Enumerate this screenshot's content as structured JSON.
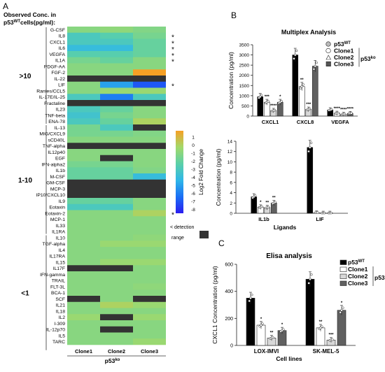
{
  "panel_labels": [
    "A",
    "B",
    "C"
  ],
  "heatmap_header": [
    "Observed Conc. in",
    "p53",
    "WT",
    "cells(pg/ml):"
  ],
  "colors": {
    "scale": [
      "#2b1cf0",
      "#1a6ff5",
      "#2fb7e8",
      "#5bd0a8",
      "#a2d96a",
      "#f6a025"
    ],
    "below_detection": "#333333",
    "wt": "#000000",
    "clone1": "#ffffff",
    "clone2": "#d8d8d8",
    "clone3": "#606060"
  },
  "heatmap": {
    "groups": [
      {
        "label": ">10",
        "start": 0,
        "end": 15
      },
      {
        "label": "1-10",
        "start": 16,
        "end": 33
      },
      {
        "label": "<1",
        "start": 34,
        "end": 52
      }
    ],
    "cols": [
      "Clone1",
      "Clone2",
      "Clone3"
    ],
    "xlabel_main": "p53",
    "xlabel_sup": "ko",
    "legend_title": "Log2 Fold Change",
    "legend_ticks": [
      "1",
      "0",
      "-1",
      "-2",
      "-3",
      "-4",
      "-5",
      "-6",
      "-7",
      "-8"
    ],
    "legend_vmin": -8.5,
    "legend_vmax": 1.8,
    "na_text_1": "< detection",
    "na_text_2": "range",
    "stars": [
      {
        "row": 1,
        "text": "*"
      },
      {
        "row": 2,
        "text": "*"
      },
      {
        "row": 3,
        "text": "*"
      },
      {
        "row": 4,
        "text": "*"
      },
      {
        "row": 5,
        "text": "*"
      },
      {
        "row": 9,
        "text": "*"
      },
      {
        "row": 30,
        "text": "*"
      }
    ]
  },
  "chart_data": [
    {
      "type": "heatmap",
      "rows": [
        "G-CSF",
        "IL8",
        "CXCL1",
        "IL6",
        "VEGFA",
        "IL1A",
        "PDGF-AA",
        "FGF-2",
        "IL-22",
        "LIF",
        "Rantes/CCL5",
        "IL-17E/IL-25",
        "Fractaline",
        "IL23",
        "TNF-beta",
        "ENA-78",
        "IL-13",
        "MIG/CXCL9",
        "sCD40L",
        "TNF-alpha",
        "IL12p40",
        "EGF",
        "IFN-alpha2",
        "IL1b",
        "M-CSF",
        "GM-CSF",
        "MCP-3",
        "IP10/CXCL10",
        "IL9",
        "Eotaxin",
        "Eotaxin-2",
        "MCP-1",
        "IL33",
        "IL1RA",
        "IL10",
        "TGF-alpha",
        "IL4",
        "IL17RA",
        "IL15",
        "IL17F",
        "IFN-gamma",
        "TRAIL",
        "FLT-3L",
        "BCA-1",
        "SCF",
        "IL21",
        "IL18",
        "IL2",
        "I-309",
        "IL-12p70",
        "IL5",
        "TARC"
      ],
      "columns": [
        "Clone1",
        "Clone2",
        "Clone3"
      ],
      "values": [
        [
          -1,
          -0.8,
          -1.2
        ],
        [
          -3,
          -2.5,
          -1.5
        ],
        [
          -3,
          -3,
          -2
        ],
        [
          -4,
          -4,
          -2
        ],
        [
          -2.5,
          -2.5,
          -2
        ],
        [
          -1.5,
          -2,
          -1
        ],
        [
          -1,
          -1,
          -1
        ],
        [
          -1,
          -1,
          1.8
        ],
        [
          null,
          null,
          null
        ],
        [
          -1,
          -5,
          -7
        ],
        [
          -1,
          -0.5,
          -0.5
        ],
        [
          -3,
          -6,
          -3
        ],
        [
          null,
          null,
          null
        ],
        [
          -3,
          -2,
          -1
        ],
        [
          -3.5,
          -1.5,
          -1
        ],
        [
          -3,
          -2,
          0
        ],
        [
          -1.5,
          -3,
          null
        ],
        [
          -1.5,
          -1.5,
          -1.2
        ],
        [
          -1,
          -1,
          -1
        ],
        [
          null,
          null,
          null
        ],
        [
          -1,
          -1,
          -1
        ],
        [
          -1,
          null,
          -1
        ],
        [
          -1.5,
          -1.5,
          -1
        ],
        [
          -2,
          -2,
          -1.2
        ],
        [
          -2,
          -2,
          -4
        ],
        [
          null,
          null,
          null
        ],
        [
          null,
          null,
          null
        ],
        [
          null,
          null,
          null
        ],
        [
          -2,
          -2,
          -1
        ],
        [
          -3,
          -3,
          -1
        ],
        [
          -1,
          -1,
          0
        ],
        [
          -1,
          -1,
          -1
        ],
        [
          -1,
          -1,
          -1
        ],
        [
          -1,
          -1,
          -1
        ],
        [
          -1,
          -1,
          -0.8
        ],
        [
          -1,
          -0.5,
          -0.5
        ],
        [
          -1,
          -1,
          -1
        ],
        [
          -1,
          -1,
          -1
        ],
        [
          -1,
          -0.5,
          -0.5
        ],
        [
          null,
          null,
          -1
        ],
        [
          -1,
          -1,
          -1
        ],
        [
          -1,
          -1,
          -1
        ],
        [
          -1,
          -1,
          -0.8
        ],
        [
          -1,
          -1,
          -1
        ],
        [
          null,
          -1,
          null
        ],
        [
          -1,
          0,
          -0.5
        ],
        [
          -1,
          -1,
          -1
        ],
        [
          -0.5,
          null,
          -0.5
        ],
        [
          -1,
          -1,
          -1
        ],
        [
          -1,
          null,
          -1
        ],
        [
          -1,
          -1,
          -1
        ],
        [
          -1,
          -1,
          -0.5
        ]
      ]
    },
    {
      "type": "bar",
      "title": "Multiplex Analysis",
      "ylabel": "Concentration (pg/ml)",
      "categories": [
        "CXCL1",
        "CXCL8",
        "VEGFA"
      ],
      "ylim": [
        0,
        3500
      ],
      "yticks": [
        "0",
        "500",
        "1000",
        "1500",
        "2000",
        "2500",
        "3000",
        "3500"
      ],
      "series": [
        {
          "name": "p53WT",
          "values": [
            950,
            3000,
            300
          ]
        },
        {
          "name": "Clone1",
          "values": [
            680,
            1450,
            140
          ]
        },
        {
          "name": "Clone2",
          "values": [
            270,
            330,
            90
          ]
        },
        {
          "name": "Clone3",
          "values": [
            680,
            2450,
            130
          ]
        }
      ],
      "significance": [
        [
          "",
          "***",
          "****",
          "*"
        ],
        [
          "",
          "**",
          "***",
          ""
        ],
        [
          "",
          "****",
          "****",
          "****"
        ]
      ]
    },
    {
      "type": "bar",
      "ylabel": "Concentration (pg/ml)",
      "xlabel": "Ligands",
      "categories": [
        "IL1b",
        "LIF"
      ],
      "ylim": [
        0,
        14
      ],
      "yticks": [
        "0",
        "2",
        "4",
        "6",
        "8",
        "10",
        "12",
        "14"
      ],
      "series": [
        {
          "name": "p53WT",
          "values": [
            3.2,
            12.8
          ]
        },
        {
          "name": "Clone1",
          "values": [
            1.2,
            0.1
          ]
        },
        {
          "name": "Clone2",
          "values": [
            1.1,
            0.05
          ]
        },
        {
          "name": "Clone3",
          "values": [
            2.0,
            0.05
          ]
        }
      ],
      "significance": [
        [
          "",
          "*",
          "**",
          "**"
        ],
        [
          "",
          "",
          "",
          ""
        ]
      ]
    },
    {
      "type": "bar",
      "title": "Elisa analysis",
      "ylabel": "CXCL1 Concentration (pg/ml)",
      "xlabel": "Cell lines",
      "categories": [
        "LOX-IMVI",
        "SK-MEL-5"
      ],
      "ylim": [
        0,
        600
      ],
      "yticks": [
        "0",
        "200",
        "400",
        "600"
      ],
      "series": [
        {
          "name": "p53WT",
          "values": [
            350,
            490
          ]
        },
        {
          "name": "Clone1",
          "values": [
            150,
            130
          ]
        },
        {
          "name": "Clone2",
          "values": [
            55,
            40
          ]
        },
        {
          "name": "Clone3",
          "values": [
            110,
            260
          ]
        }
      ],
      "significance": [
        [
          "",
          "*",
          "**",
          "*"
        ],
        [
          "",
          "**",
          "***",
          "*"
        ]
      ]
    }
  ],
  "legend_B": {
    "wt_main": "p53",
    "wt_sup": "WT",
    "clones": [
      "Clone1",
      "Clone2",
      "Clone3"
    ],
    "ko_main": "p53",
    "ko_sup": "ko"
  },
  "legend_C": {
    "wt_main": "p53",
    "wt_sup": "WT",
    "clones": [
      "Clone1",
      "Clone2",
      "Clone3"
    ],
    "ko_main": "p53",
    "ko_sup": "ko"
  }
}
